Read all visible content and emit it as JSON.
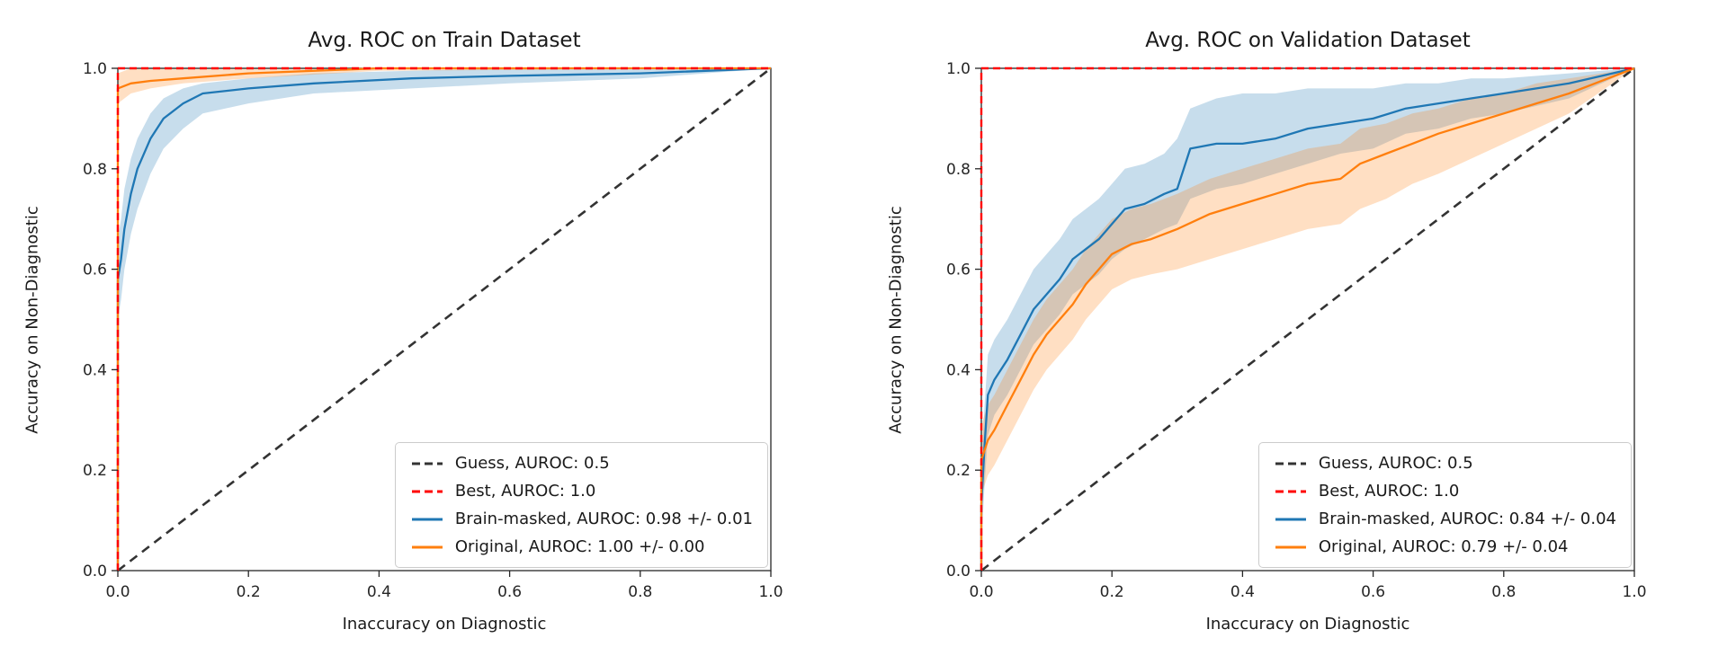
{
  "figure": {
    "background": "#ffffff"
  },
  "style": {
    "spine_color": "#262626",
    "tick_label_color": "#262626",
    "band_opacity": 0.25,
    "tick_font_size": 17
  },
  "chart_data": [
    {
      "type": "line",
      "title": "Avg. ROC on Train Dataset",
      "xlabel": "Inaccuracy on Diagnostic",
      "ylabel": "Accuracy on Non-Diagnostic",
      "xlim": [
        0,
        1
      ],
      "ylim": [
        0,
        1
      ],
      "xticks": [
        0.0,
        0.2,
        0.4,
        0.6,
        0.8,
        1.0
      ],
      "yticks": [
        0.0,
        0.2,
        0.4,
        0.6,
        0.8,
        1.0
      ],
      "xtick_labels": [
        "0.0",
        "0.2",
        "0.4",
        "0.6",
        "0.8",
        "1.0"
      ],
      "ytick_labels": [
        "0.0",
        "0.2",
        "0.4",
        "0.6",
        "0.8",
        "1.0"
      ],
      "grid": false,
      "legend_position": "lower right",
      "legend": [
        {
          "label": "Guess, AUROC: 0.5",
          "color": "#333333",
          "dash": true
        },
        {
          "label": "Best, AUROC: 1.0",
          "color": "#ff0000",
          "dash": true
        },
        {
          "label": "Brain-masked, AUROC: 0.98 +/- 0.01",
          "color": "#1f77b4",
          "dash": false
        },
        {
          "label": "Original, AUROC: 1.00 +/- 0.00",
          "color": "#ff7f0e",
          "dash": false
        }
      ],
      "series": [
        {
          "name": "Guess",
          "color": "#333333",
          "dash": "10 7",
          "width": 2.6,
          "x": [
            0,
            1
          ],
          "y": [
            0,
            1
          ]
        },
        {
          "name": "Brain-masked",
          "color": "#1f77b4",
          "dash": null,
          "width": 2.3,
          "x": [
            0,
            0,
            0.005,
            0.01,
            0.02,
            0.03,
            0.05,
            0.07,
            0.1,
            0.13,
            0.2,
            0.3,
            0.45,
            0.6,
            0.8,
            1.0
          ],
          "y": [
            0,
            0.58,
            0.62,
            0.68,
            0.75,
            0.8,
            0.86,
            0.9,
            0.93,
            0.95,
            0.96,
            0.97,
            0.98,
            0.985,
            0.99,
            1.0
          ],
          "ylo": [
            0,
            0.5,
            0.54,
            0.6,
            0.67,
            0.72,
            0.79,
            0.84,
            0.88,
            0.91,
            0.93,
            0.95,
            0.96,
            0.97,
            0.98,
            1.0
          ],
          "yhi": [
            0,
            0.66,
            0.7,
            0.76,
            0.82,
            0.86,
            0.91,
            0.94,
            0.96,
            0.97,
            0.98,
            0.99,
            0.995,
            1.0,
            1.0,
            1.0
          ]
        },
        {
          "name": "Original",
          "color": "#ff7f0e",
          "dash": null,
          "width": 2.3,
          "x": [
            0,
            0,
            0.02,
            0.05,
            0.1,
            0.2,
            0.4,
            1.0
          ],
          "y": [
            0,
            0.96,
            0.97,
            0.975,
            0.98,
            0.99,
            1.0,
            1.0
          ],
          "ylo": [
            0,
            0.93,
            0.95,
            0.96,
            0.97,
            0.98,
            0.995,
            1.0
          ],
          "yhi": [
            0,
            0.99,
            1.0,
            1.0,
            1.0,
            1.0,
            1.0,
            1.0
          ]
        },
        {
          "name": "Best",
          "color": "#ff0000",
          "dash": "8 5",
          "width": 2.4,
          "x": [
            0,
            0,
            1
          ],
          "y": [
            0,
            1,
            1
          ]
        }
      ]
    },
    {
      "type": "line",
      "title": "Avg. ROC on Validation Dataset",
      "xlabel": "Inaccuracy on Diagnostic",
      "ylabel": "Accuracy on Non-Diagnostic",
      "xlim": [
        0,
        1
      ],
      "ylim": [
        0,
        1
      ],
      "xticks": [
        0.0,
        0.2,
        0.4,
        0.6,
        0.8,
        1.0
      ],
      "yticks": [
        0.0,
        0.2,
        0.4,
        0.6,
        0.8,
        1.0
      ],
      "xtick_labels": [
        "0.0",
        "0.2",
        "0.4",
        "0.6",
        "0.8",
        "1.0"
      ],
      "ytick_labels": [
        "0.0",
        "0.2",
        "0.4",
        "0.6",
        "0.8",
        "1.0"
      ],
      "grid": false,
      "legend_position": "lower right",
      "legend": [
        {
          "label": "Guess, AUROC: 0.5",
          "color": "#333333",
          "dash": true
        },
        {
          "label": "Best, AUROC: 1.0",
          "color": "#ff0000",
          "dash": true
        },
        {
          "label": "Brain-masked, AUROC: 0.84 +/- 0.04",
          "color": "#1f77b4",
          "dash": false
        },
        {
          "label": "Original, AUROC: 0.79 +/- 0.04",
          "color": "#ff7f0e",
          "dash": false
        }
      ],
      "series": [
        {
          "name": "Guess",
          "color": "#333333",
          "dash": "10 7",
          "width": 2.6,
          "x": [
            0,
            1
          ],
          "y": [
            0,
            1
          ]
        },
        {
          "name": "Brain-masked",
          "color": "#1f77b4",
          "dash": null,
          "width": 2.3,
          "x": [
            0,
            0,
            0.005,
            0.01,
            0.02,
            0.04,
            0.06,
            0.08,
            0.1,
            0.12,
            0.14,
            0.16,
            0.18,
            0.2,
            0.22,
            0.25,
            0.28,
            0.3,
            0.32,
            0.36,
            0.4,
            0.45,
            0.5,
            0.55,
            0.6,
            0.65,
            0.7,
            0.75,
            0.8,
            0.9,
            1.0
          ],
          "y": [
            0,
            0.13,
            0.25,
            0.35,
            0.38,
            0.42,
            0.47,
            0.52,
            0.55,
            0.58,
            0.62,
            0.64,
            0.66,
            0.69,
            0.72,
            0.73,
            0.75,
            0.76,
            0.84,
            0.85,
            0.85,
            0.86,
            0.88,
            0.89,
            0.9,
            0.92,
            0.93,
            0.94,
            0.95,
            0.97,
            1.0
          ],
          "ylo": [
            0,
            0.06,
            0.17,
            0.27,
            0.31,
            0.35,
            0.4,
            0.45,
            0.48,
            0.51,
            0.55,
            0.57,
            0.59,
            0.62,
            0.64,
            0.66,
            0.68,
            0.69,
            0.74,
            0.76,
            0.77,
            0.79,
            0.81,
            0.83,
            0.84,
            0.87,
            0.88,
            0.9,
            0.91,
            0.94,
            1.0
          ],
          "yhi": [
            0,
            0.21,
            0.33,
            0.43,
            0.46,
            0.5,
            0.55,
            0.6,
            0.63,
            0.66,
            0.7,
            0.72,
            0.74,
            0.77,
            0.8,
            0.81,
            0.83,
            0.86,
            0.92,
            0.94,
            0.95,
            0.95,
            0.96,
            0.96,
            0.96,
            0.97,
            0.97,
            0.98,
            0.98,
            0.99,
            1.0
          ]
        },
        {
          "name": "Original",
          "color": "#ff7f0e",
          "dash": null,
          "width": 2.3,
          "x": [
            0,
            0,
            0.01,
            0.02,
            0.04,
            0.06,
            0.08,
            0.1,
            0.12,
            0.14,
            0.16,
            0.18,
            0.2,
            0.23,
            0.26,
            0.3,
            0.35,
            0.4,
            0.45,
            0.5,
            0.55,
            0.58,
            0.62,
            0.66,
            0.7,
            0.75,
            0.8,
            0.85,
            0.9,
            1.0
          ],
          "y": [
            0,
            0.22,
            0.26,
            0.28,
            0.33,
            0.38,
            0.43,
            0.47,
            0.5,
            0.53,
            0.57,
            0.6,
            0.63,
            0.65,
            0.66,
            0.68,
            0.71,
            0.73,
            0.75,
            0.77,
            0.78,
            0.81,
            0.83,
            0.85,
            0.87,
            0.89,
            0.91,
            0.93,
            0.95,
            1.0
          ],
          "ylo": [
            0,
            0.15,
            0.19,
            0.21,
            0.26,
            0.31,
            0.36,
            0.4,
            0.43,
            0.46,
            0.5,
            0.53,
            0.56,
            0.58,
            0.59,
            0.6,
            0.62,
            0.64,
            0.66,
            0.68,
            0.69,
            0.72,
            0.74,
            0.77,
            0.79,
            0.82,
            0.85,
            0.88,
            0.91,
            1.0
          ],
          "yhi": [
            0,
            0.29,
            0.33,
            0.35,
            0.4,
            0.45,
            0.5,
            0.54,
            0.57,
            0.6,
            0.64,
            0.67,
            0.7,
            0.72,
            0.73,
            0.75,
            0.78,
            0.8,
            0.82,
            0.84,
            0.85,
            0.88,
            0.89,
            0.91,
            0.92,
            0.94,
            0.95,
            0.97,
            0.98,
            1.0
          ]
        },
        {
          "name": "Best",
          "color": "#ff0000",
          "dash": "8 5",
          "width": 2.4,
          "x": [
            0,
            0,
            1
          ],
          "y": [
            0,
            1,
            1
          ]
        }
      ]
    }
  ]
}
